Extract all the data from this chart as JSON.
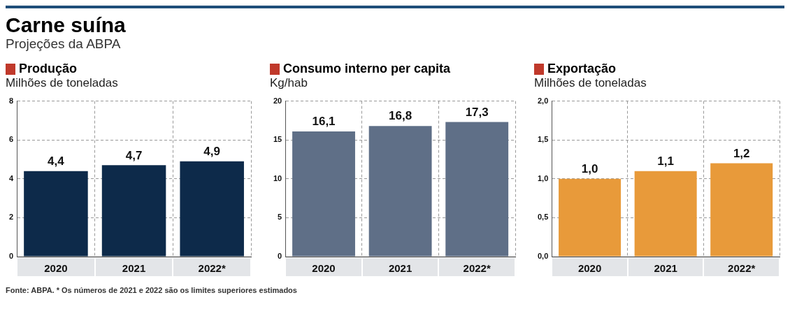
{
  "chart_data": [
    {
      "type": "other",
      "title": "Carne suína",
      "subtitle": "Projeções da ABPA",
      "annotations": [
        "Fonte: ABPA. * Os números de 2021 e 2022 são os limites superiores estimados"
      ]
    },
    {
      "type": "bar",
      "title": "Produção",
      "subtitle": "Milhões de toneladas",
      "categories": [
        "2020",
        "2021",
        "2022*"
      ],
      "values": [
        4.4,
        4.7,
        4.9
      ],
      "value_labels": [
        "4,4",
        "4,7",
        "4,9"
      ],
      "color": "#0d2a4a",
      "ylim": [
        0,
        8
      ],
      "yticks": [
        0,
        2,
        4,
        6,
        8
      ],
      "grid": true
    },
    {
      "type": "bar",
      "title": "Consumo interno per capita",
      "subtitle": "Kg/hab",
      "categories": [
        "2020",
        "2021",
        "2022*"
      ],
      "values": [
        16.1,
        16.8,
        17.3
      ],
      "value_labels": [
        "16,1",
        "16,8",
        "17,3"
      ],
      "color": "#5f6f87",
      "ylim": [
        0,
        20
      ],
      "yticks": [
        0,
        5,
        10,
        15,
        20
      ],
      "grid": true
    },
    {
      "type": "bar",
      "title": "Exportação",
      "subtitle": "Milhões de toneladas",
      "categories": [
        "2020",
        "2021",
        "2022*"
      ],
      "values": [
        1.0,
        1.1,
        1.2
      ],
      "value_labels": [
        "1,0",
        "1,1",
        "1,2"
      ],
      "color": "#e89a3a",
      "ylim": [
        0,
        2
      ],
      "yticks": [
        {
          "value": 0,
          "label": "0,0"
        },
        {
          "value": 0.5,
          "label": "0,5"
        },
        {
          "value": 1,
          "label": "1,0"
        },
        {
          "value": 1.5,
          "label": "1,5"
        },
        {
          "value": 2,
          "label": "2,0"
        }
      ],
      "grid": true
    }
  ]
}
